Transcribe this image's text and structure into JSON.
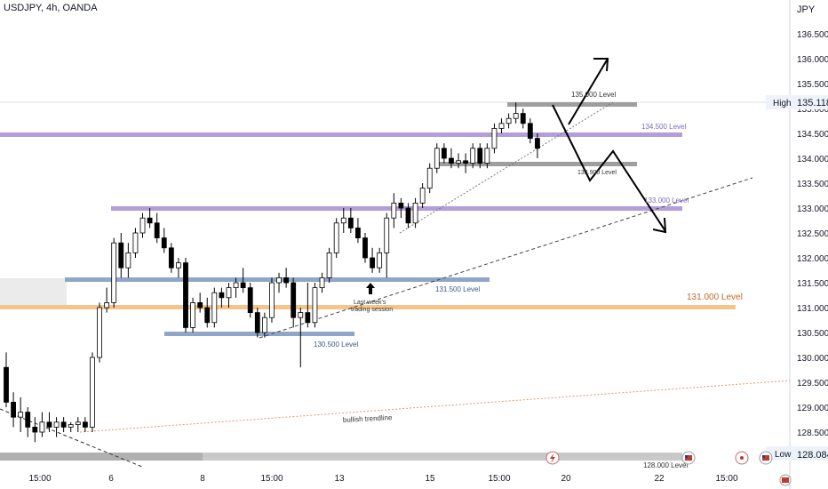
{
  "header": {
    "symbol_title": "USDJPY, 4h, OANDA"
  },
  "axis": {
    "currency": "JPY"
  },
  "colors": {
    "candle_up": "#ffffff",
    "candle_down": "#000000",
    "candle_outline": "#000000",
    "level_purple": "#b39ddb",
    "level_blue": "#8fa6c9",
    "level_gray": "#9e9e9e",
    "level_orange": "#f4c58a",
    "trendline": "#555555",
    "orange_dotted": "#e8956a"
  },
  "chart_data": {
    "type": "candlestick",
    "title": "USDJPY, 4h, OANDA",
    "y_axis_label": "JPY",
    "y_range": [
      128.0,
      137.0
    ],
    "y_ticks": [
      "128.500",
      "129.000",
      "129.500",
      "130.000",
      "130.500",
      "131.000",
      "131.500",
      "132.000",
      "132.500",
      "133.000",
      "133.500",
      "134.000",
      "134.500",
      "135.000",
      "135.500",
      "136.000",
      "136.500"
    ],
    "x_ticks": [
      "15:00",
      "6",
      "8",
      "15:00",
      "13",
      "15",
      "15:00",
      "20",
      "22",
      "15:00"
    ],
    "price_markers": [
      {
        "label": "High",
        "value": "135.118"
      },
      {
        "label": "Low",
        "value": "128.084"
      }
    ],
    "candles": [
      {
        "o": 129.8,
        "h": 130.1,
        "l": 129.0,
        "c": 129.1
      },
      {
        "o": 129.1,
        "h": 129.3,
        "l": 128.6,
        "c": 128.8
      },
      {
        "o": 128.8,
        "h": 129.2,
        "l": 128.5,
        "c": 128.9
      },
      {
        "o": 128.9,
        "h": 129.0,
        "l": 128.4,
        "c": 128.6
      },
      {
        "o": 128.6,
        "h": 128.8,
        "l": 128.3,
        "c": 128.5
      },
      {
        "o": 128.5,
        "h": 128.9,
        "l": 128.4,
        "c": 128.7
      },
      {
        "o": 128.7,
        "h": 128.9,
        "l": 128.5,
        "c": 128.6
      },
      {
        "o": 128.6,
        "h": 128.8,
        "l": 128.4,
        "c": 128.7
      },
      {
        "o": 128.7,
        "h": 128.8,
        "l": 128.5,
        "c": 128.6
      },
      {
        "o": 128.6,
        "h": 128.7,
        "l": 128.5,
        "c": 128.65
      },
      {
        "o": 128.65,
        "h": 128.8,
        "l": 128.5,
        "c": 128.7
      },
      {
        "o": 128.7,
        "h": 128.8,
        "l": 128.5,
        "c": 128.6
      },
      {
        "o": 128.6,
        "h": 130.1,
        "l": 128.5,
        "c": 130.0
      },
      {
        "o": 130.0,
        "h": 131.1,
        "l": 129.9,
        "c": 131.0
      },
      {
        "o": 131.0,
        "h": 131.4,
        "l": 130.9,
        "c": 131.1
      },
      {
        "o": 131.1,
        "h": 132.4,
        "l": 131.0,
        "c": 132.3
      },
      {
        "o": 132.3,
        "h": 132.5,
        "l": 131.6,
        "c": 131.8
      },
      {
        "o": 131.8,
        "h": 132.3,
        "l": 131.6,
        "c": 132.1
      },
      {
        "o": 132.1,
        "h": 132.6,
        "l": 132.0,
        "c": 132.5
      },
      {
        "o": 132.5,
        "h": 132.9,
        "l": 132.4,
        "c": 132.8
      },
      {
        "o": 132.8,
        "h": 133.0,
        "l": 132.6,
        "c": 132.7
      },
      {
        "o": 132.7,
        "h": 132.9,
        "l": 132.3,
        "c": 132.4
      },
      {
        "o": 132.4,
        "h": 132.6,
        "l": 132.1,
        "c": 132.2
      },
      {
        "o": 132.2,
        "h": 132.3,
        "l": 131.7,
        "c": 131.8
      },
      {
        "o": 131.8,
        "h": 132.0,
        "l": 131.6,
        "c": 131.9
      },
      {
        "o": 131.9,
        "h": 132.0,
        "l": 130.5,
        "c": 130.6
      },
      {
        "o": 130.6,
        "h": 131.2,
        "l": 130.5,
        "c": 131.1
      },
      {
        "o": 131.1,
        "h": 131.3,
        "l": 130.9,
        "c": 131.0
      },
      {
        "o": 131.0,
        "h": 131.2,
        "l": 130.6,
        "c": 130.7
      },
      {
        "o": 130.7,
        "h": 131.4,
        "l": 130.6,
        "c": 131.3
      },
      {
        "o": 131.3,
        "h": 131.4,
        "l": 131.0,
        "c": 131.2
      },
      {
        "o": 131.2,
        "h": 131.5,
        "l": 131.0,
        "c": 131.4
      },
      {
        "o": 131.4,
        "h": 131.6,
        "l": 131.2,
        "c": 131.5
      },
      {
        "o": 131.5,
        "h": 131.8,
        "l": 131.3,
        "c": 131.4
      },
      {
        "o": 131.4,
        "h": 131.5,
        "l": 130.8,
        "c": 130.9
      },
      {
        "o": 130.9,
        "h": 131.0,
        "l": 130.4,
        "c": 130.5
      },
      {
        "o": 130.5,
        "h": 130.9,
        "l": 130.4,
        "c": 130.8
      },
      {
        "o": 130.8,
        "h": 131.6,
        "l": 130.7,
        "c": 131.5
      },
      {
        "o": 131.5,
        "h": 131.7,
        "l": 131.3,
        "c": 131.6
      },
      {
        "o": 131.6,
        "h": 131.8,
        "l": 131.4,
        "c": 131.5
      },
      {
        "o": 131.5,
        "h": 131.6,
        "l": 130.6,
        "c": 130.8
      },
      {
        "o": 130.8,
        "h": 131.0,
        "l": 129.8,
        "c": 130.9
      },
      {
        "o": 130.9,
        "h": 131.5,
        "l": 130.6,
        "c": 130.7
      },
      {
        "o": 130.7,
        "h": 131.5,
        "l": 130.6,
        "c": 131.4
      },
      {
        "o": 131.4,
        "h": 131.7,
        "l": 131.3,
        "c": 131.6
      },
      {
        "o": 131.6,
        "h": 132.2,
        "l": 131.5,
        "c": 132.1
      },
      {
        "o": 132.1,
        "h": 132.8,
        "l": 132.0,
        "c": 132.7
      },
      {
        "o": 132.7,
        "h": 133.0,
        "l": 132.5,
        "c": 132.8
      },
      {
        "o": 132.8,
        "h": 133.0,
        "l": 132.5,
        "c": 132.6
      },
      {
        "o": 132.6,
        "h": 132.8,
        "l": 132.3,
        "c": 132.4
      },
      {
        "o": 132.4,
        "h": 132.5,
        "l": 131.9,
        "c": 132.0
      },
      {
        "o": 132.0,
        "h": 132.2,
        "l": 131.7,
        "c": 131.8
      },
      {
        "o": 131.8,
        "h": 132.2,
        "l": 131.7,
        "c": 132.1
      },
      {
        "o": 132.1,
        "h": 132.9,
        "l": 131.6,
        "c": 132.8
      },
      {
        "o": 132.8,
        "h": 133.3,
        "l": 132.6,
        "c": 133.1
      },
      {
        "o": 133.1,
        "h": 133.2,
        "l": 132.8,
        "c": 133.0
      },
      {
        "o": 133.0,
        "h": 133.1,
        "l": 132.6,
        "c": 132.7
      },
      {
        "o": 132.7,
        "h": 133.2,
        "l": 132.6,
        "c": 133.1
      },
      {
        "o": 133.1,
        "h": 133.5,
        "l": 133.0,
        "c": 133.4
      },
      {
        "o": 133.4,
        "h": 133.9,
        "l": 133.3,
        "c": 133.8
      },
      {
        "o": 133.8,
        "h": 134.3,
        "l": 133.7,
        "c": 134.2
      },
      {
        "o": 134.2,
        "h": 134.3,
        "l": 133.9,
        "c": 134.0
      },
      {
        "o": 134.0,
        "h": 134.2,
        "l": 133.8,
        "c": 133.9
      },
      {
        "o": 133.9,
        "h": 134.1,
        "l": 133.8,
        "c": 133.95
      },
      {
        "o": 133.95,
        "h": 134.1,
        "l": 133.7,
        "c": 133.9
      },
      {
        "o": 133.9,
        "h": 134.3,
        "l": 133.8,
        "c": 134.2
      },
      {
        "o": 134.2,
        "h": 134.3,
        "l": 133.8,
        "c": 133.9
      },
      {
        "o": 133.9,
        "h": 134.3,
        "l": 133.8,
        "c": 134.2
      },
      {
        "o": 134.2,
        "h": 134.7,
        "l": 134.1,
        "c": 134.6
      },
      {
        "o": 134.6,
        "h": 134.8,
        "l": 134.5,
        "c": 134.7
      },
      {
        "o": 134.7,
        "h": 134.9,
        "l": 134.6,
        "c": 134.8
      },
      {
        "o": 134.8,
        "h": 135.118,
        "l": 134.7,
        "c": 134.9
      },
      {
        "o": 134.9,
        "h": 135.0,
        "l": 134.6,
        "c": 134.7
      },
      {
        "o": 134.7,
        "h": 134.8,
        "l": 134.3,
        "c": 134.4
      },
      {
        "o": 134.4,
        "h": 134.5,
        "l": 134.0,
        "c": 134.2
      }
    ],
    "levels": [
      {
        "name": "135.000 Level",
        "value": 135.0
      },
      {
        "name": "134.500 Level",
        "value": 134.5
      },
      {
        "name": "133.900 Level",
        "value": 133.9
      },
      {
        "name": "133.000 Level",
        "value": 133.0
      },
      {
        "name": "131.500 Level",
        "value": 131.5
      },
      {
        "name": "131.000 Level",
        "value": 131.0
      },
      {
        "name": "130.500 Level",
        "value": 130.5
      },
      {
        "name": "128.000 Level",
        "value": 128.0
      }
    ],
    "annotations": [
      {
        "text": "Last week's trading session"
      },
      {
        "text": "bullish trendline"
      }
    ]
  },
  "labels": {
    "lvl_135": "135.000 Level",
    "lvl_1345": "134.500 Level",
    "lvl_1339": "133.900 Level",
    "lvl_133": "133.000 Level",
    "lvl_1315": "131.500 Level",
    "lvl_131": "131.000 Level",
    "lvl_1305": "130.500 Level",
    "lvl_128": "128.000 Level",
    "last_week_line1": "Last week's",
    "last_week_line2": "trading session",
    "bullish_trendline": "bullish trendline",
    "high_label": "High",
    "high_value": "135.118",
    "low_label": "Low",
    "low_value": "128.084"
  }
}
